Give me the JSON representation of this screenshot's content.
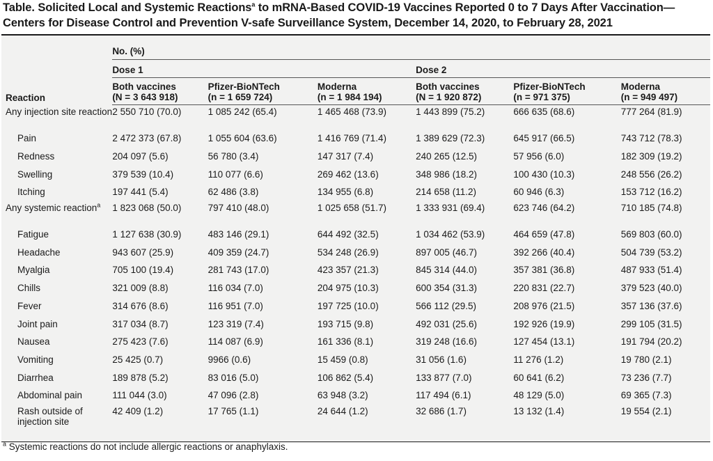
{
  "title": "Table. Solicited Local and Systemic Reactions",
  "title_sup": "a",
  "title_rest": " to mRNA-Based COVID-19 Vaccines Reported 0 to 7 Days After Vaccination—Centers for Disease Control and Prevention V-safe Surveillance System, December 14, 2020, to February 28, 2021",
  "header": {
    "no_pct": "No. (%)",
    "dose1": "Dose 1",
    "dose2": "Dose 2",
    "reaction": "Reaction",
    "columns": [
      {
        "name": "Both vaccines",
        "n": "(N = 3 643 918)"
      },
      {
        "name": "Pfizer-BioNTech",
        "n": "(n = 1 659 724)"
      },
      {
        "name": "Moderna",
        "n": "(n = 1 984 194)"
      },
      {
        "name": "Both vaccines",
        "n": "(N = 1 920 872)"
      },
      {
        "name": "Pfizer-BioNTech",
        "n": "(n = 971 375)"
      },
      {
        "name": "Moderna",
        "n": "(n = 949 497)"
      }
    ]
  },
  "rows": [
    {
      "label": "Any injection site reaction",
      "values": [
        "2 550 710 (70.0)",
        "1 085 242 (65.4)",
        "1 465 468 (73.9)",
        "1 443 899 (75.2)",
        "666 635 (68.6)",
        "777 264 (81.9)"
      ]
    },
    {
      "label": "Pain",
      "values": [
        "2 472 373 (67.8)",
        "1 055 604 (63.6)",
        "1 416 769 (71.4)",
        "1 389 629 (72.3)",
        "645 917 (66.5)",
        "743 712 (78.3)"
      ]
    },
    {
      "label": "Redness",
      "values": [
        "204 097 (5.6)",
        "56 780 (3.4)",
        "147 317 (7.4)",
        "240 265 (12.5)",
        "57 956 (6.0)",
        "182 309 (19.2)"
      ]
    },
    {
      "label": "Swelling",
      "values": [
        "379 539 (10.4)",
        "110 077 (6.6)",
        "269 462 (13.6)",
        "348 986 (18.2)",
        "100 430 (10.3)",
        "248 556 (26.2)"
      ]
    },
    {
      "label": "Itching",
      "values": [
        "197 441 (5.4)",
        "62 486 (3.8)",
        "134 955 (6.8)",
        "214 658 (11.2)",
        "60 946 (6.3)",
        "153 712 (16.2)"
      ]
    },
    {
      "label": "Any systemic reaction",
      "label_sup": "a",
      "values": [
        "1 823 068 (50.0)",
        "797 410 (48.0)",
        "1 025 658 (51.7)",
        "1 333 931 (69.4)",
        "623 746 (64.2)",
        "710 185 (74.8)"
      ]
    },
    {
      "label": "Fatigue",
      "values": [
        "1 127 638 (30.9)",
        "483 146 (29.1)",
        "644 492 (32.5)",
        "1 034 462 (53.9)",
        "464 659 (47.8)",
        "569 803 (60.0)"
      ]
    },
    {
      "label": "Headache",
      "values": [
        "943 607 (25.9)",
        "409 359 (24.7)",
        "534 248 (26.9)",
        "897 005 (46.7)",
        "392 266 (40.4)",
        "504 739 (53.2)"
      ]
    },
    {
      "label": "Myalgia",
      "values": [
        "705 100 (19.4)",
        "281 743 (17.0)",
        "423 357 (21.3)",
        "845 314 (44.0)",
        "357 381 (36.8)",
        "487 933 (51.4)"
      ]
    },
    {
      "label": "Chills",
      "values": [
        "321 009 (8.8)",
        "116 034 (7.0)",
        "204 975 (10.3)",
        "600 354 (31.3)",
        "220 831 (22.7)",
        "379 523 (40.0)"
      ]
    },
    {
      "label": "Fever",
      "values": [
        "314 676 (8.6)",
        "116 951 (7.0)",
        "197 725 (10.0)",
        "566 112 (29.5)",
        "208 976 (21.5)",
        "357 136 (37.6)"
      ]
    },
    {
      "label": "Joint pain",
      "values": [
        "317 034 (8.7)",
        "123 319 (7.4)",
        "193 715 (9.8)",
        "492 031 (25.6)",
        "192 926 (19.9)",
        "299 105 (31.5)"
      ]
    },
    {
      "label": "Nausea",
      "values": [
        "275 423 (7.6)",
        "114 087 (6.9)",
        "161 336 (8.1)",
        "319 248 (16.6)",
        "127 454 (13.1)",
        "191 794 (20.2)"
      ]
    },
    {
      "label": "Vomiting",
      "values": [
        "25 425 (0.7)",
        "9966 (0.6)",
        "15 459 (0.8)",
        "31 056 (1.6)",
        "11 276 (1.2)",
        "19 780 (2.1)"
      ]
    },
    {
      "label": "Diarrhea",
      "values": [
        "189 878 (5.2)",
        "83 016 (5.0)",
        "106 862 (5.4)",
        "133 877 (7.0)",
        "60 641 (6.2)",
        "73 236 (7.7)"
      ]
    },
    {
      "label": "Abdominal pain",
      "values": [
        "111 044 (3.0)",
        "47 096 (2.8)",
        "63 948 (3.2)",
        "117 494 (6.1)",
        "48 129 (5.0)",
        "69 365 (7.3)"
      ]
    },
    {
      "label": "Rash outside of injection site",
      "values": [
        "42 409 (1.2)",
        "17 765 (1.1)",
        "24 644 (1.2)",
        "32 686 (1.7)",
        "13 132 (1.4)",
        "19 554 (2.1)"
      ]
    }
  ],
  "footnote_sup": "a",
  "footnote": " Systemic reactions do not include allergic reactions or anaphylaxis."
}
